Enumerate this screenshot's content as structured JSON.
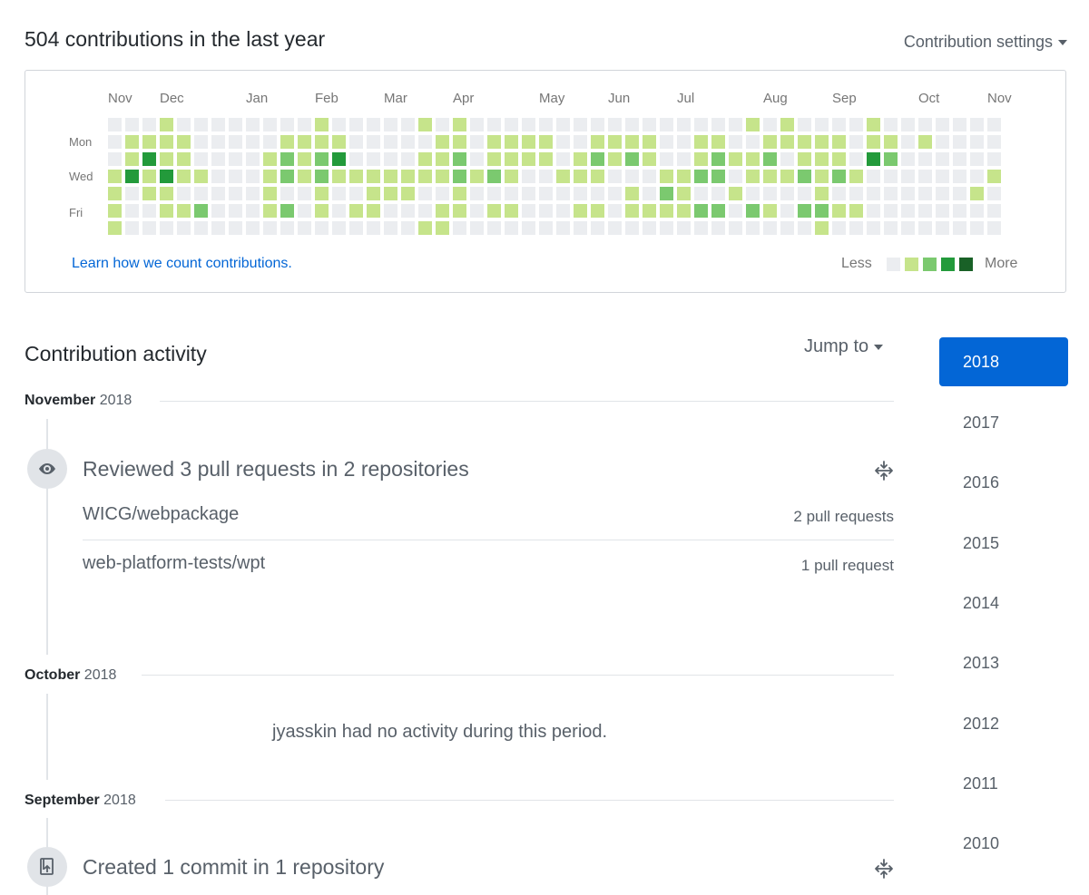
{
  "header": {
    "title": "504 contributions in the last year",
    "settings_label": "Contribution settings"
  },
  "graph": {
    "months": [
      "Nov",
      "Dec",
      "Jan",
      "Feb",
      "Mar",
      "Apr",
      "May",
      "Jun",
      "Jul",
      "Aug",
      "Sep",
      "Oct",
      "Nov"
    ],
    "month_weeks": [
      0,
      3,
      8,
      12,
      16,
      20,
      25,
      29,
      33,
      38,
      42,
      47,
      51
    ],
    "days": [
      "Mon",
      "Wed",
      "Fri"
    ],
    "levels": [
      "0001000000001000001010000000000000000101000010000000",
      "0111100000111100000110111100111100110011111011010000",
      "0131100001212300001120111101212100121120111032000000",
      "1313110001212111111121210011100011220111212100000001",
      "1011000001001001110010000000001021001000010000000010",
      "1001120001201011000110110001101111220210221100000000",
      "1000000000000000001100000000000000000000010000000000"
    ],
    "colors": [
      "#ebedf0",
      "#c6e48b",
      "#7bc96f",
      "#239a3b",
      "#196127"
    ],
    "learn_link": "Learn how we count contributions.",
    "legend_less": "Less",
    "legend_more": "More"
  },
  "activity": {
    "title": "Contribution activity",
    "jump_to": "Jump to",
    "sections": [
      {
        "month": "November",
        "year": "2018",
        "event_icon": "eye-icon",
        "event_title": "Reviewed 3 pull requests in 2 repositories",
        "repos": [
          {
            "name": "WICG/webpackage",
            "count": "2 pull requests"
          },
          {
            "name": "web-platform-tests/wpt",
            "count": "1 pull request"
          }
        ]
      },
      {
        "month": "October",
        "year": "2018",
        "empty_text": "jyasskin had no activity during this period."
      },
      {
        "month": "September",
        "year": "2018",
        "event_icon": "repo-push-icon",
        "event_title": "Created 1 commit in 1 repository"
      }
    ]
  },
  "years": {
    "selected": "2018",
    "others": [
      "2017",
      "2016",
      "2015",
      "2014",
      "2013",
      "2012",
      "2011",
      "2010"
    ]
  }
}
